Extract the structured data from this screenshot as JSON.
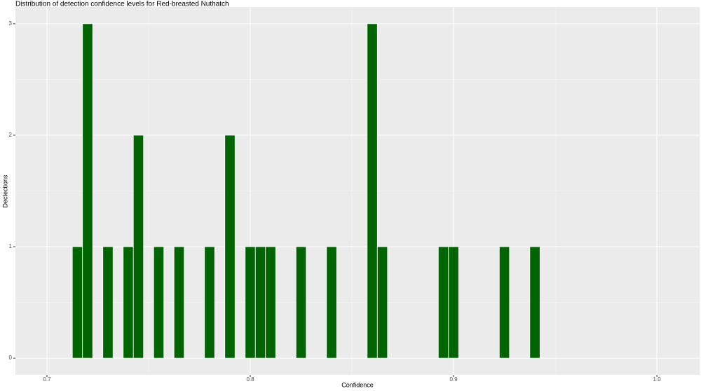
{
  "chart_data": {
    "type": "histogram",
    "title": "Distribution of detection confidence levels for Red-breasted Nuthatch",
    "x_label": "Confidence",
    "y_label": "Dectections",
    "bins": [
      0.7125,
      0.7175,
      0.7225,
      0.7275,
      0.7325,
      0.7375,
      0.7425,
      0.7475,
      0.7525,
      0.7575,
      0.7625,
      0.7675,
      0.7725,
      0.7775,
      0.7825,
      0.7875,
      0.7925,
      0.7975,
      0.8025,
      0.8075,
      0.8125,
      0.8175,
      0.8225,
      0.8275,
      0.8325,
      0.8375,
      0.8425,
      0.8475,
      0.8525,
      0.8575,
      0.8625,
      0.8675,
      0.8725,
      0.8775,
      0.8825,
      0.8875,
      0.8925,
      0.8975,
      0.9025,
      0.9075,
      0.9125,
      0.9175,
      0.9225,
      0.9275,
      0.9325,
      0.9375,
      0.9425
    ],
    "values": [
      1,
      3,
      0,
      1,
      0,
      1,
      2,
      0,
      1,
      0,
      1,
      0,
      0,
      1,
      0,
      2,
      0,
      1,
      1,
      1,
      0,
      0,
      1,
      0,
      0,
      1,
      0,
      0,
      0,
      3,
      1,
      0,
      0,
      0,
      0,
      0,
      1,
      1,
      0,
      0,
      0,
      0,
      1,
      0,
      0,
      1
    ],
    "color": "#006400",
    "xlim": [
      0.6845,
      1.021
    ],
    "xticks": [
      0.7,
      0.8,
      0.9,
      {
        "value": 1,
        "label": "1.0"
      }
    ],
    "ylim": [
      -0.15,
      3.15
    ],
    "yticks": [
      0,
      1,
      2,
      3
    ],
    "grid": true
  }
}
